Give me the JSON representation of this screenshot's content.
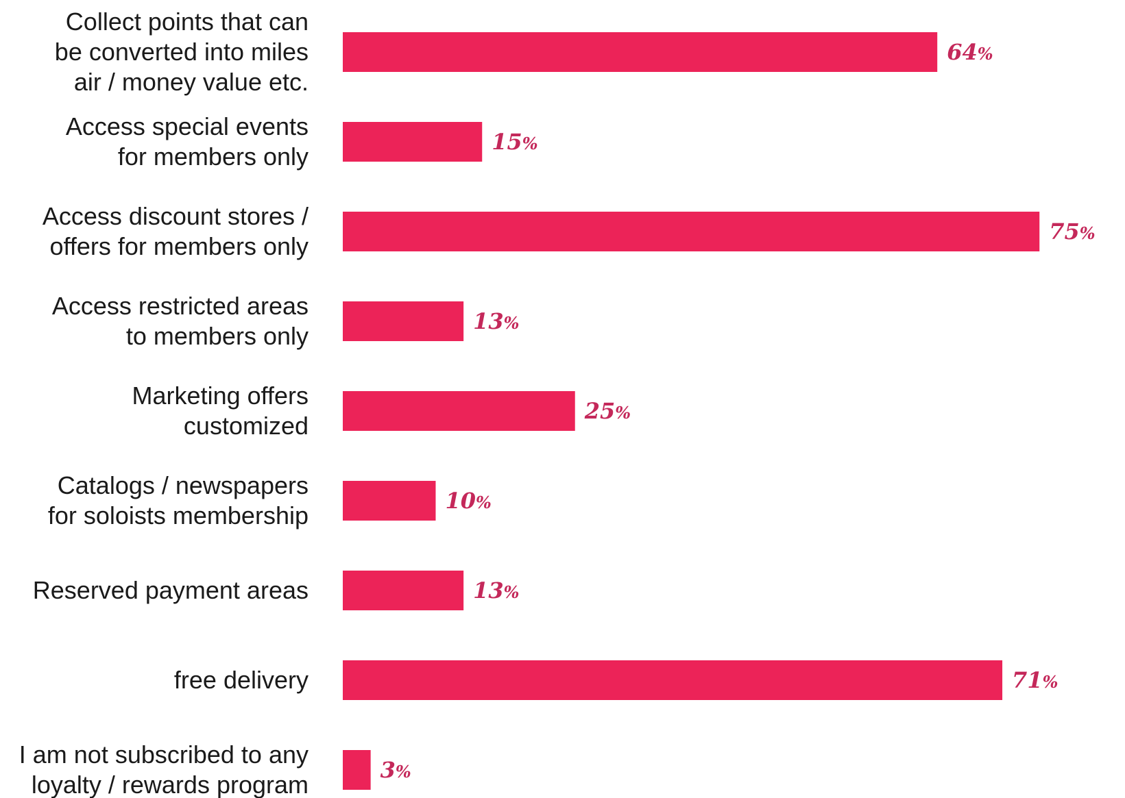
{
  "chart_data": {
    "type": "bar",
    "orientation": "horizontal",
    "bar_color": "#ec2358",
    "value_label_color": "#c4285a",
    "grid": false,
    "legend": "none",
    "title": "",
    "xlabel": "",
    "ylabel": "",
    "xlim": [
      0,
      75
    ],
    "unit": "%",
    "categories": [
      [
        "Collect points that can",
        "be converted into miles",
        "air / money value etc."
      ],
      [
        "Access special events",
        "for members only"
      ],
      [
        "Access discount stores /",
        "offers for members only"
      ],
      [
        "Access restricted areas",
        "to members only"
      ],
      [
        "Marketing offers",
        "customized"
      ],
      [
        "Catalogs / newspapers",
        "for soloists membership"
      ],
      [
        "Reserved payment areas"
      ],
      [
        "free delivery"
      ],
      [
        "I am not subscribed to any",
        "loyalty / rewards program"
      ]
    ],
    "values": [
      64,
      15,
      75,
      13,
      25,
      10,
      13,
      71,
      3
    ]
  }
}
